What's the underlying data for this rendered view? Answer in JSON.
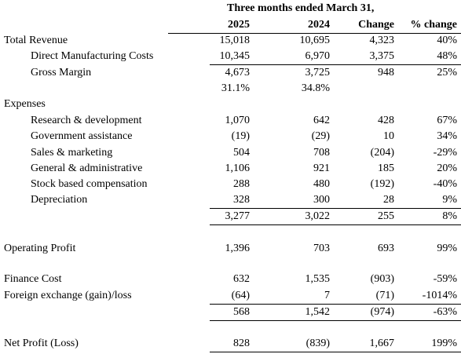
{
  "header": {
    "period": "Three months ended March 31,",
    "col_2025": "2025",
    "col_2024": "2024",
    "col_change": "Change",
    "col_pct": "% change"
  },
  "rows": [
    {
      "label": "Total Revenue",
      "v2025": "15,018",
      "v2024": "10,695",
      "change": "4,323",
      "pct": "40%"
    },
    {
      "label": "Direct Manufacturing Costs",
      "v2025": "10,345",
      "v2024": "6,970",
      "change": "3,375",
      "pct": "48%"
    },
    {
      "label": "Gross Margin",
      "v2025": "4,673",
      "v2024": "3,725",
      "change": "948",
      "pct": "25%"
    },
    {
      "label": "",
      "v2025": "31.1%",
      "v2024": "34.8%",
      "change": "",
      "pct": ""
    },
    {
      "label": "Expenses",
      "v2025": "",
      "v2024": "",
      "change": "",
      "pct": ""
    },
    {
      "label": "Research & development",
      "v2025": "1,070",
      "v2024": "642",
      "change": "428",
      "pct": "67%"
    },
    {
      "label": "Government assistance",
      "v2025": "(19)",
      "v2024": "(29)",
      "change": "10",
      "pct": "34%"
    },
    {
      "label": "Sales & marketing",
      "v2025": "504",
      "v2024": "708",
      "change": "(204)",
      "pct": "-29%"
    },
    {
      "label": "General & administrative",
      "v2025": "1,106",
      "v2024": "921",
      "change": "185",
      "pct": "20%"
    },
    {
      "label": "Stock based compensation",
      "v2025": "288",
      "v2024": "480",
      "change": "(192)",
      "pct": "-40%"
    },
    {
      "label": "Depreciation",
      "v2025": "328",
      "v2024": "300",
      "change": "28",
      "pct": "9%"
    },
    {
      "label": "",
      "v2025": "3,277",
      "v2024": "3,022",
      "change": "255",
      "pct": "8%"
    },
    {
      "label": "Operating Profit",
      "v2025": "1,396",
      "v2024": "703",
      "change": "693",
      "pct": "99%"
    },
    {
      "label": "Finance Cost",
      "v2025": "632",
      "v2024": "1,535",
      "change": "(903)",
      "pct": "-59%"
    },
    {
      "label": "Foreign exchange (gain)/loss",
      "v2025": "(64)",
      "v2024": "7",
      "change": "(71)",
      "pct": "-1014%"
    },
    {
      "label": "",
      "v2025": "568",
      "v2024": "1,542",
      "change": "(974)",
      "pct": "-63%"
    },
    {
      "label": "Net Profit (Loss)",
      "v2025": "828",
      "v2024": "(839)",
      "change": "1,667",
      "pct": "199%"
    }
  ]
}
